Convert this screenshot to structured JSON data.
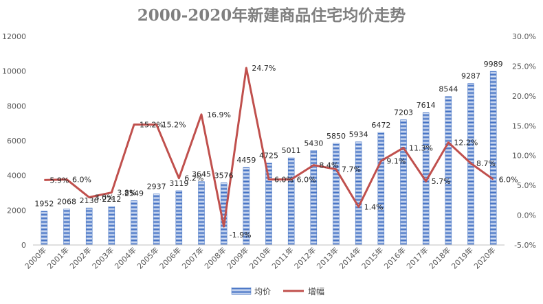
{
  "chart_data": {
    "type": "bar",
    "title": "2000-2020年新建商品住宅均价走势",
    "categories": [
      "2000年",
      "2001年",
      "2002年",
      "2003年",
      "2004年",
      "2005年",
      "2006年",
      "2007年",
      "2008年",
      "2009年",
      "2010年",
      "2011年",
      "2012年",
      "2013年",
      "2014年",
      "2015年",
      "2016年",
      "2017年",
      "2018年",
      "2019年",
      "2020年"
    ],
    "series": [
      {
        "name": "均价",
        "type": "bar",
        "axis": "left",
        "color": "#4472c4",
        "values": [
          1952,
          2068,
          2130,
          2212,
          2549,
          2937,
          3119,
          3645,
          3576,
          4459,
          4725,
          5011,
          5430,
          5850,
          5934,
          6472,
          7203,
          7614,
          8544,
          9287,
          9989
        ],
        "labels": [
          "1952",
          "2068",
          "2130",
          "2212",
          "2549",
          "2937",
          "3119",
          "3645",
          "3576",
          "4459",
          "4725",
          "5011",
          "5430",
          "5850",
          "5934",
          "6472",
          "7203",
          "7614",
          "8544",
          "9287",
          "9989"
        ]
      },
      {
        "name": "增幅",
        "type": "line",
        "axis": "right",
        "color": "#c0504d",
        "values": [
          5.9,
          6.0,
          3.0,
          3.8,
          15.2,
          15.2,
          6.2,
          16.9,
          -1.9,
          24.7,
          6.0,
          6.0,
          8.4,
          7.7,
          1.4,
          9.1,
          11.3,
          5.7,
          12.2,
          8.7,
          6.0
        ],
        "labels": [
          "5.9%",
          "6.0%",
          "3.0%",
          "3.8%",
          "15.2%",
          "15.2%",
          "6.2%",
          "16.9%",
          "-1.9%",
          "24.7%",
          "6.0%",
          "6.0%",
          "8.4%",
          "7.7%",
          "1.4%",
          "9.1%",
          "11.3%",
          "5.7%",
          "12.2%",
          "8.7%",
          "6.0%"
        ]
      }
    ],
    "y_left": {
      "min": 0,
      "max": 12000,
      "ticks": [
        "0",
        "2000",
        "4000",
        "6000",
        "8000",
        "10000",
        "12000"
      ]
    },
    "y_right": {
      "min": -5,
      "max": 30,
      "ticks": [
        "-5.0%",
        "0.0%",
        "5.0%",
        "10.0%",
        "15.0%",
        "20.0%",
        "25.0%",
        "30.0%"
      ]
    },
    "legend": {
      "position": "bottom",
      "items": [
        "均价",
        "增幅"
      ]
    },
    "grid": false
  }
}
